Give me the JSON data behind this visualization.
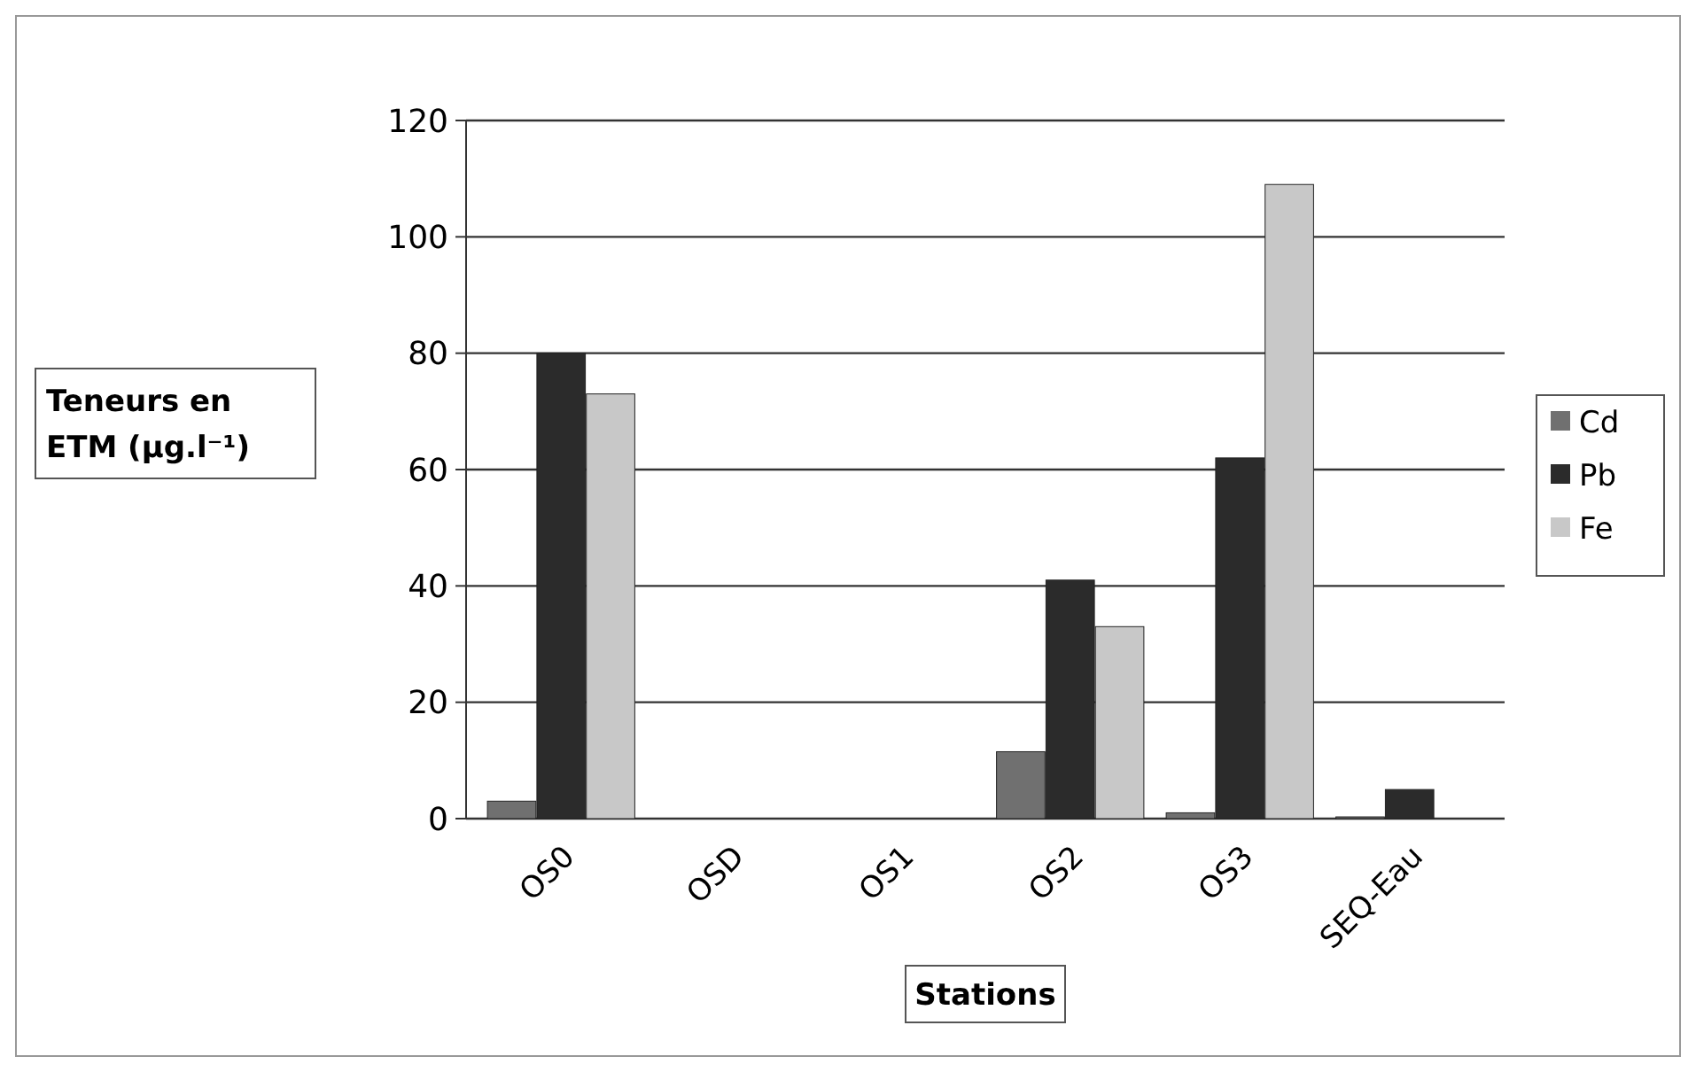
{
  "chart_data": {
    "type": "bar",
    "xlabel": "Stations",
    "ylabel": "Teneurs en ETM (µg.l⁻¹)",
    "categories": [
      "OS0",
      "OSD",
      "OS1",
      "OS2",
      "OS3",
      "SEQ-Eau"
    ],
    "series": [
      {
        "name": "Cd",
        "color": "#707070",
        "values": [
          3,
          null,
          null,
          11.5,
          1,
          0.3
        ]
      },
      {
        "name": "Pb",
        "color": "#2b2b2b",
        "values": [
          80,
          null,
          null,
          41,
          62,
          5
        ]
      },
      {
        "name": "Fe",
        "color": "#c8c8c8",
        "values": [
          73,
          null,
          null,
          33,
          109,
          null
        ]
      }
    ],
    "ylim": [
      0,
      120
    ],
    "yticks": [
      0,
      20,
      40,
      60,
      80,
      100,
      120
    ],
    "grid": "y",
    "legend": "right"
  }
}
